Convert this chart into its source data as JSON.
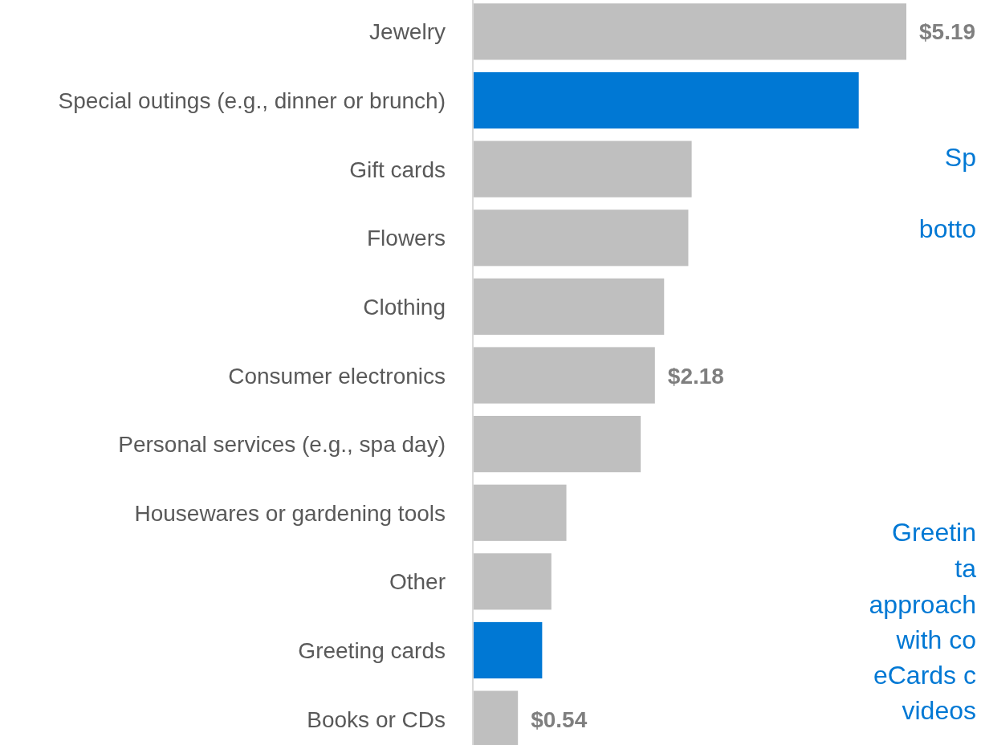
{
  "chart_data": {
    "type": "bar",
    "orientation": "horizontal",
    "categories": [
      "Jewelry",
      "Special outings (e.g., dinner or brunch)",
      "Gift cards",
      "Flowers",
      "Clothing",
      "Consumer electronics",
      "Personal services (e.g., spa day)",
      "Housewares or gardening tools",
      "Other",
      "Greeting cards",
      "Books or CDs"
    ],
    "values": [
      5.19,
      4.62,
      2.62,
      2.58,
      2.29,
      2.18,
      2.01,
      1.12,
      0.94,
      0.83,
      0.54
    ],
    "colors": [
      "#bfbfbf",
      "#0078d4",
      "#bfbfbf",
      "#bfbfbf",
      "#bfbfbf",
      "#bfbfbf",
      "#bfbfbf",
      "#bfbfbf",
      "#bfbfbf",
      "#0078d4",
      "#bfbfbf"
    ],
    "value_labels": [
      "$5.19",
      null,
      null,
      null,
      null,
      "$2.18",
      null,
      null,
      null,
      null,
      "$0.54"
    ],
    "annotations": [
      "Sp",
      "botto",
      "Greetin",
      "ta",
      "approach",
      "with co",
      "eCards c",
      "videos"
    ]
  }
}
